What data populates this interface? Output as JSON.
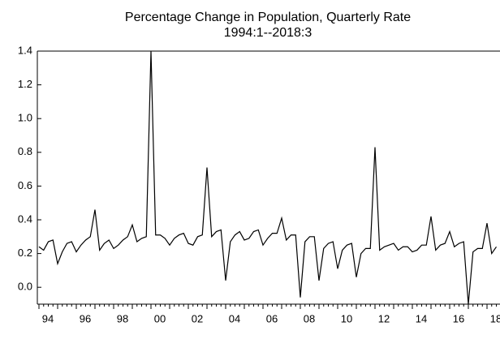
{
  "chart_data": {
    "type": "line",
    "title": "Percentage Change in Population, Quarterly Rate",
    "subtitle": "1994:1--2018:3",
    "categories": [
      "94",
      null,
      null,
      null,
      null,
      null,
      null,
      null,
      "96",
      null,
      null,
      null,
      null,
      null,
      null,
      null,
      "98",
      null,
      null,
      null,
      null,
      null,
      null,
      null,
      "00",
      null,
      null,
      null,
      null,
      null,
      null,
      null,
      "02",
      null,
      null,
      null,
      null,
      null,
      null,
      null,
      "04",
      null,
      null,
      null,
      null,
      null,
      null,
      null,
      "06",
      null,
      null,
      null,
      null,
      null,
      null,
      null,
      "08",
      null,
      null,
      null,
      null,
      null,
      null,
      null,
      "10",
      null,
      null,
      null,
      null,
      null,
      null,
      null,
      "12",
      null,
      null,
      null,
      null,
      null,
      null,
      null,
      "14",
      null,
      null,
      null,
      null,
      null,
      null,
      null,
      "16",
      null,
      null,
      null,
      null,
      null,
      null,
      null,
      "18",
      null,
      null
    ],
    "values": [
      0.24,
      0.22,
      0.27,
      0.28,
      0.14,
      0.21,
      0.26,
      0.27,
      0.21,
      0.25,
      0.28,
      0.3,
      0.46,
      0.22,
      0.26,
      0.28,
      0.23,
      0.25,
      0.28,
      0.3,
      0.37,
      0.27,
      0.29,
      0.3,
      1.4,
      0.31,
      0.31,
      0.29,
      0.25,
      0.29,
      0.31,
      0.32,
      0.26,
      0.25,
      0.3,
      0.31,
      0.71,
      0.3,
      0.33,
      0.34,
      0.04,
      0.27,
      0.31,
      0.33,
      0.28,
      0.29,
      0.33,
      0.34,
      0.25,
      0.29,
      0.32,
      0.32,
      0.41,
      0.28,
      0.31,
      0.31,
      -0.06,
      0.27,
      0.3,
      0.3,
      0.04,
      0.23,
      0.26,
      0.27,
      0.11,
      0.22,
      0.25,
      0.26,
      0.06,
      0.2,
      0.23,
      0.23,
      0.83,
      0.22,
      0.24,
      0.25,
      0.26,
      0.22,
      0.24,
      0.24,
      0.21,
      0.22,
      0.25,
      0.25,
      0.42,
      0.22,
      0.25,
      0.26,
      0.33,
      0.24,
      0.26,
      0.27,
      -0.1,
      0.21,
      0.23,
      0.23,
      0.38,
      0.2,
      0.24
    ],
    "color": "#000000",
    "ylim": [
      -0.1,
      1.4
    ],
    "yticks": [
      {
        "value": 0,
        "label": "0.0"
      },
      0.2,
      0.4,
      0.6,
      0.8,
      {
        "value": 1,
        "label": "1.0"
      },
      {
        "value": 1.2,
        "label": "1.2"
      },
      {
        "value": 1.4,
        "label": "1.4"
      }
    ]
  }
}
